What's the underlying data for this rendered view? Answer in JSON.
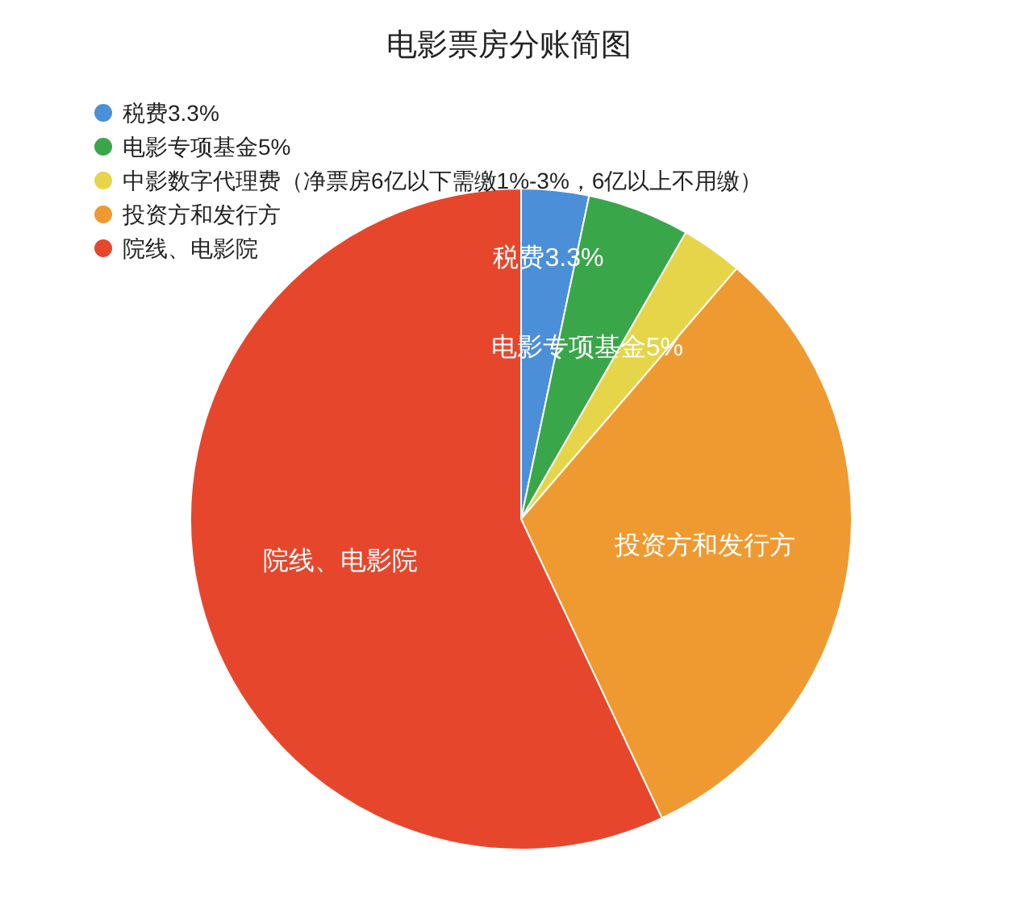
{
  "chart_data": {
    "type": "pie",
    "title": "电影票房分账简图",
    "legend": "top left",
    "categories": [
      "税费3.3%",
      "电影专项基金5%",
      "中影数字代理费（净票房6亿以下需缴1%-3%，6亿以上不用缴）",
      "投资方和发行方",
      "院线、电影院"
    ],
    "values": [
      3.3,
      5,
      3,
      31.7,
      57
    ],
    "colors": [
      "#4a8fd8",
      "#3aa64a",
      "#e6d548",
      "#ef9a30",
      "#e6472c"
    ],
    "value_labels": [
      "税费3.3%",
      "电影专项基金5%",
      null,
      "投资方和发行方",
      "院线、电影院"
    ]
  }
}
